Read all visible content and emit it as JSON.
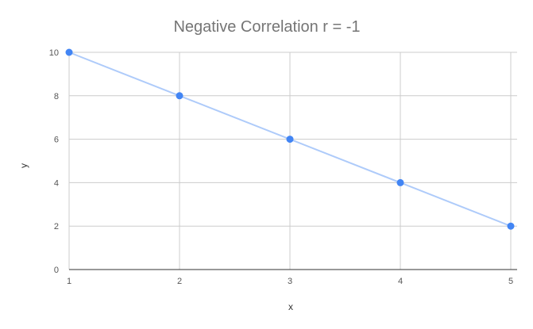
{
  "chart_data": {
    "type": "scatter",
    "title": "Negative Correlation r = -1",
    "xlabel": "x",
    "ylabel": "y",
    "xlim": [
      1,
      5
    ],
    "ylim": [
      0,
      10
    ],
    "x_ticks": [
      "1",
      "2",
      "3",
      "4",
      "5"
    ],
    "y_ticks": [
      "0",
      "2",
      "4",
      "6",
      "8",
      "10"
    ],
    "grid": true,
    "trendline": true,
    "series": [
      {
        "x": [
          1,
          2,
          3,
          4,
          5
        ],
        "y": [
          10,
          8,
          6,
          4,
          2
        ],
        "color": "#4285f4"
      }
    ],
    "colors": {
      "point": "#4285f4",
      "trendline": "#aecbfa",
      "grid": "#cccccc",
      "axis": "#333333"
    }
  }
}
